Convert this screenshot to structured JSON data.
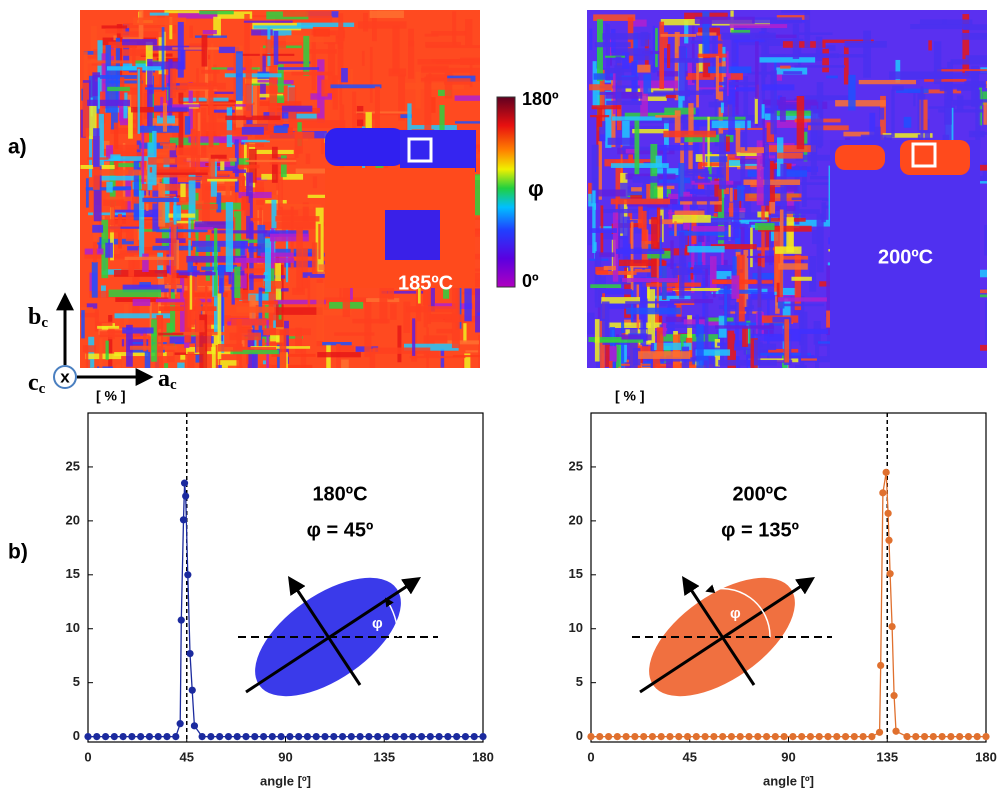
{
  "panel_labels": [
    "a)",
    "b)"
  ],
  "maps": [
    {
      "label": "185ºC"
    },
    {
      "label": "200ºC"
    }
  ],
  "colorbar": {
    "max_label": "180º",
    "title": "φ",
    "min_label": "0º"
  },
  "crystal_axes": {
    "b": {
      "main": "b",
      "sub": "c"
    },
    "c": {
      "main": "c",
      "sub": "c"
    },
    "c_symbol": "x",
    "a": {
      "main": "a",
      "sub": "c"
    }
  },
  "chart_data": [
    {
      "type": "line",
      "unit_label": "[ % ]",
      "xlabel": "angle [º]",
      "annotations": [
        "180ºC",
        "φ = 45º"
      ],
      "inset_angle_label": "φ",
      "reference_x": 45,
      "xlim": [
        0,
        180
      ],
      "ylim": [
        -0.5,
        30
      ],
      "xticks": [
        0,
        45,
        90,
        135,
        180
      ],
      "yticks": [
        0,
        5,
        10,
        15,
        20,
        25
      ],
      "series": [
        {
          "color": "#1b2a9e",
          "x": [
            0,
            4,
            8,
            12,
            16,
            20,
            24,
            28,
            32,
            36,
            40,
            42,
            42.5,
            43.5,
            44,
            44.5,
            45.5,
            46.5,
            47.5,
            48.5,
            52,
            56,
            60,
            64,
            68,
            72,
            76,
            80,
            84,
            88,
            92,
            96,
            100,
            104,
            108,
            112,
            116,
            120,
            124,
            128,
            132,
            136,
            140,
            144,
            148,
            152,
            156,
            160,
            164,
            168,
            172,
            176,
            180
          ],
          "values": [
            0,
            0,
            0,
            0,
            0,
            0,
            0,
            0,
            0,
            0,
            0,
            1.2,
            10.8,
            20.1,
            23.5,
            22.3,
            15.0,
            7.7,
            4.3,
            1.0,
            0,
            0,
            0,
            0,
            0,
            0,
            0,
            0,
            0,
            0,
            0,
            0,
            0,
            0,
            0,
            0,
            0,
            0,
            0,
            0,
            0,
            0,
            0,
            0,
            0,
            0,
            0,
            0,
            0,
            0,
            0,
            0,
            0
          ]
        }
      ]
    },
    {
      "type": "line",
      "unit_label": "[ % ]",
      "xlabel": "angle [º]",
      "annotations": [
        "200ºC",
        "φ = 135º"
      ],
      "inset_angle_label": "φ",
      "reference_x": 135,
      "xlim": [
        0,
        180
      ],
      "ylim": [
        -0.5,
        30
      ],
      "xticks": [
        0,
        45,
        90,
        135,
        180
      ],
      "yticks": [
        0,
        5,
        10,
        15,
        20,
        25
      ],
      "series": [
        {
          "color": "#e0702e",
          "x": [
            0,
            4,
            8,
            12,
            16,
            20,
            24,
            28,
            32,
            36,
            40,
            44,
            48,
            52,
            56,
            60,
            64,
            68,
            72,
            76,
            80,
            84,
            88,
            92,
            96,
            100,
            104,
            108,
            112,
            116,
            120,
            124,
            128,
            131.5,
            132,
            133,
            134.5,
            135.4,
            135.8,
            136.3,
            137.2,
            138.1,
            139,
            144,
            148,
            152,
            156,
            160,
            164,
            168,
            172,
            176,
            180
          ],
          "values": [
            0,
            0,
            0,
            0,
            0,
            0,
            0,
            0,
            0,
            0,
            0,
            0,
            0,
            0,
            0,
            0,
            0,
            0,
            0,
            0,
            0,
            0,
            0,
            0,
            0,
            0,
            0,
            0,
            0,
            0,
            0,
            0,
            0,
            0.4,
            6.6,
            22.6,
            24.5,
            20.7,
            18.2,
            15.1,
            10.2,
            3.8,
            0.5,
            0,
            0,
            0,
            0,
            0,
            0,
            0,
            0,
            0,
            0
          ]
        }
      ]
    }
  ]
}
